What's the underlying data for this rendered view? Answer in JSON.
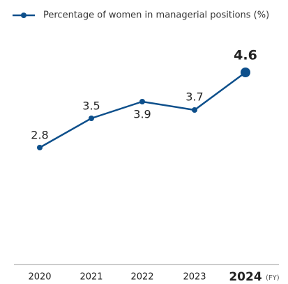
{
  "chart_data": {
    "type": "line",
    "categories": [
      "2020",
      "2021",
      "2022",
      "2023",
      "2024"
    ],
    "series": [
      {
        "name": "Percentage of women in managerial positions (%)",
        "color": "#0d4f8b",
        "values": [
          2.8,
          3.5,
          3.9,
          3.7,
          4.6
        ]
      }
    ],
    "ylim": [
      0,
      5.4
    ],
    "annotation": "(FY)"
  }
}
